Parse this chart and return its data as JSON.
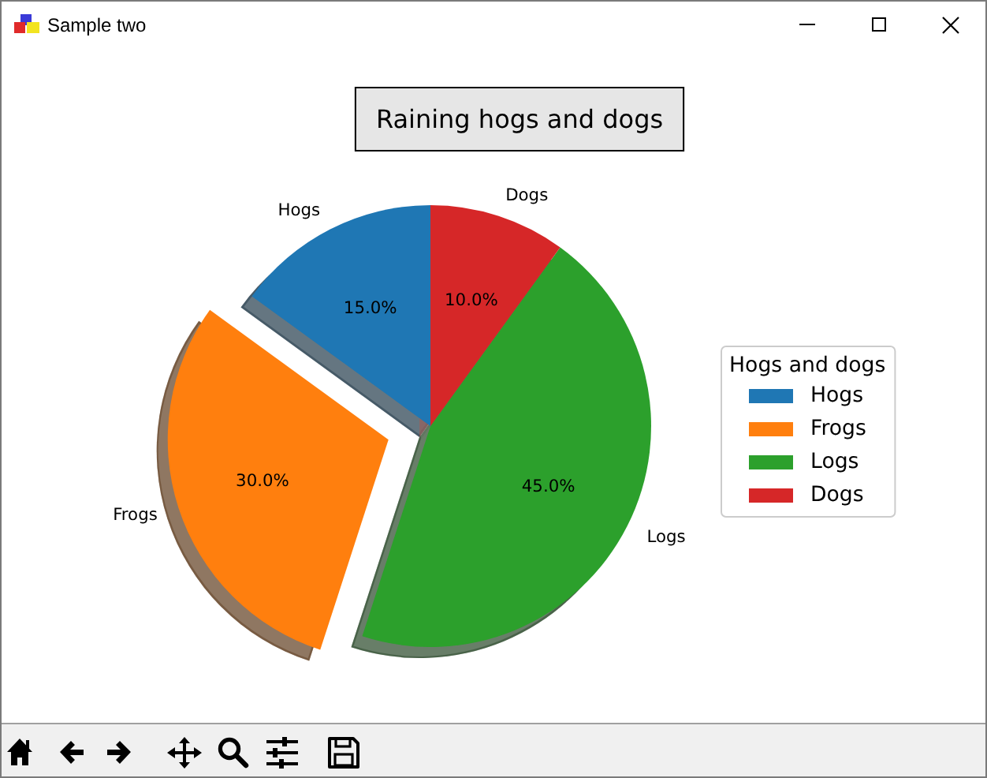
{
  "chart_data": {
    "type": "pie",
    "title": "Raining hogs and dogs",
    "legend_title": "Hogs and dogs",
    "categories": [
      "Hogs",
      "Frogs",
      "Logs",
      "Dogs"
    ],
    "values": [
      15,
      30,
      45,
      10
    ],
    "colors": [
      "#1f77b4",
      "#ff7f0e",
      "#2ca02c",
      "#d62728"
    ],
    "value_labels": [
      "15.0%",
      "30.0%",
      "45.0%",
      "10.0%"
    ],
    "legend": "right",
    "annotations": [
      "Sample two"
    ]
  }
}
